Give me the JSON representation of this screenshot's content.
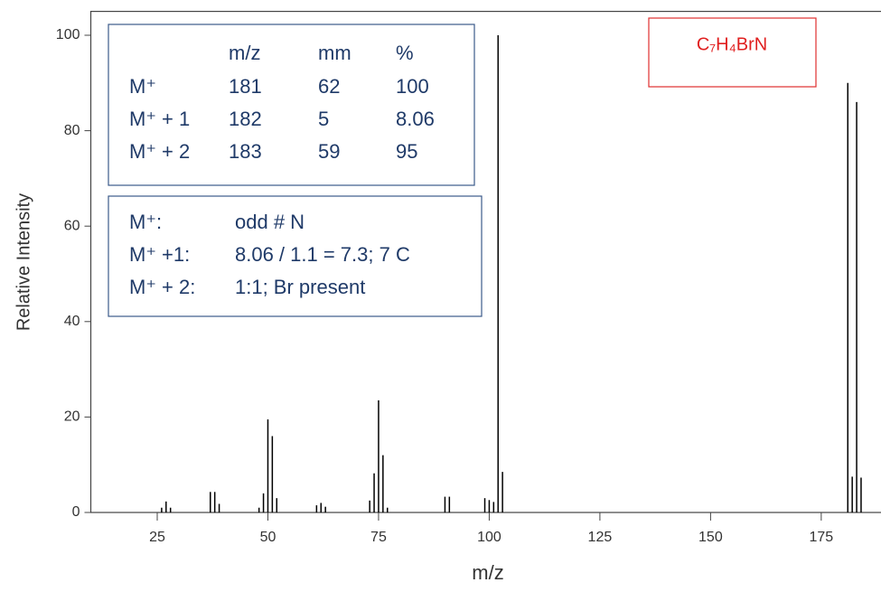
{
  "chart_data": {
    "type": "stem",
    "x_label": "m/z",
    "y_label": "Relative Intensity",
    "x": [
      26,
      27,
      28,
      37,
      38,
      39,
      48,
      49,
      50,
      51,
      52,
      61,
      62,
      63,
      73,
      74,
      75,
      76,
      77,
      90,
      91,
      99,
      100,
      101,
      102,
      103,
      181,
      182,
      183,
      184
    ],
    "values": [
      1,
      2.3,
      1,
      4.3,
      4.3,
      1.8,
      1,
      4,
      19.5,
      16,
      3,
      1.5,
      2,
      1.2,
      2.5,
      8.2,
      23.5,
      12,
      1,
      3.3,
      3.3,
      3,
      2.6,
      2.2,
      100,
      8.5,
      90,
      7.5,
      86,
      7.3
    ],
    "color": "#000000",
    "xlim": [
      10,
      188.5
    ],
    "ylim": [
      0,
      105
    ],
    "xticks": [
      25,
      50,
      75,
      100,
      125,
      150,
      175
    ],
    "yticks": [
      0,
      20,
      40,
      60,
      80,
      100
    ],
    "formula": "C₇H₄BrN",
    "isotope_table": {
      "header": [
        "m/z",
        "mm",
        "%"
      ],
      "rows": [
        [
          "M⁺",
          181,
          62,
          100
        ],
        [
          "M⁺ + 1",
          182,
          5,
          8.06
        ],
        [
          "M⁺ + 2",
          183,
          59,
          95
        ]
      ]
    },
    "interpretation": [
      [
        "M⁺:",
        "odd  # N"
      ],
      [
        "M⁺ +1:",
        "8.06 / 1.1 = 7.3;   7 C"
      ],
      [
        "M⁺ + 2:",
        "1:1; Br present"
      ]
    ]
  }
}
